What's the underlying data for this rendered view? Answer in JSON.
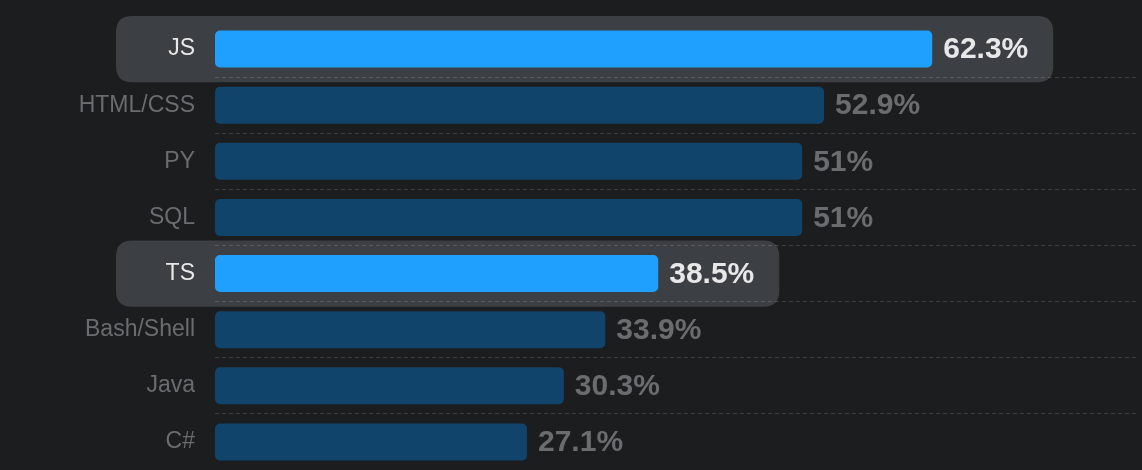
{
  "chart_data": {
    "type": "bar",
    "orientation": "horizontal",
    "categories": [
      "JS",
      "HTML/CSS",
      "PY",
      "SQL",
      "TS",
      "Bash/Shell",
      "Java",
      "C#"
    ],
    "values": [
      62.3,
      52.9,
      51,
      51,
      38.5,
      33.9,
      30.3,
      27.1
    ],
    "value_labels": [
      "62.3%",
      "52.9%",
      "51%",
      "51%",
      "38.5%",
      "33.9%",
      "30.3%",
      "27.1%"
    ],
    "colors": [
      "#1fa0ff",
      "#10446b",
      "#10446b",
      "#10446b",
      "#1fa0ff",
      "#10446b",
      "#10446b",
      "#10446b"
    ],
    "xlim": [
      0,
      80
    ],
    "tick_labels": "y",
    "grid": "y",
    "bands": [
      {
        "axis": "y",
        "from": "JS",
        "to": "JS",
        "color": "#3c3f43"
      },
      {
        "axis": "y",
        "from": "TS",
        "to": "TS",
        "color": "#3c3f43"
      }
    ]
  }
}
